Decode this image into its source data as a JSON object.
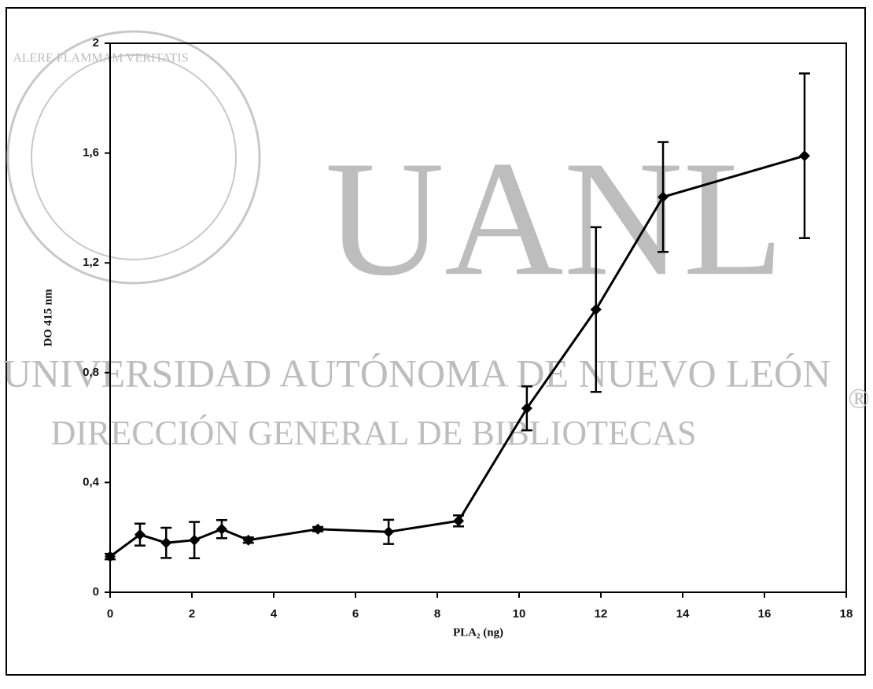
{
  "chart_data": {
    "type": "line",
    "x_label": "PLA₂ (ng)",
    "y_label": "DO 415 nm",
    "xlim": [
      0,
      18
    ],
    "xticks": [
      0,
      2,
      4,
      6,
      8,
      10,
      12,
      14,
      16,
      18
    ],
    "ylim": [
      0,
      2
    ],
    "yticks": [
      0,
      {
        "value": 0.4,
        "label": "0,4"
      },
      {
        "value": 0.8,
        "label": "0,8"
      },
      {
        "value": 1.2,
        "label": "1,2"
      },
      {
        "value": 1.6,
        "label": "1,6"
      },
      2
    ],
    "grid": false,
    "series": [
      {
        "color": "#000000",
        "x": [
          0,
          0.73,
          1.37,
          2.06,
          2.73,
          3.38,
          5.08,
          6.81,
          8.52,
          10.19,
          11.88,
          13.52,
          16.98
        ],
        "values": [
          0.13,
          0.21,
          0.18,
          0.19,
          0.23,
          0.19,
          0.23,
          0.22,
          0.26,
          0.67,
          1.03,
          1.44,
          1.59
        ],
        "errors": [
          0.01,
          0.04,
          0.055,
          0.066,
          0.033,
          0.01,
          0.008,
          0.044,
          0.02,
          0.08,
          0.3,
          0.2,
          0.3
        ]
      }
    ],
    "watermark": {
      "big": "UANL",
      "line1": "UNIVERSIDAD AUTÓNOMA DE NUEVO LEÓN",
      "line2": "DIRECCIÓN GENERAL DE BIBLIOTECAS",
      "mark": "®",
      "motto": "ALERE FLAMMAM VERITATIS"
    }
  }
}
